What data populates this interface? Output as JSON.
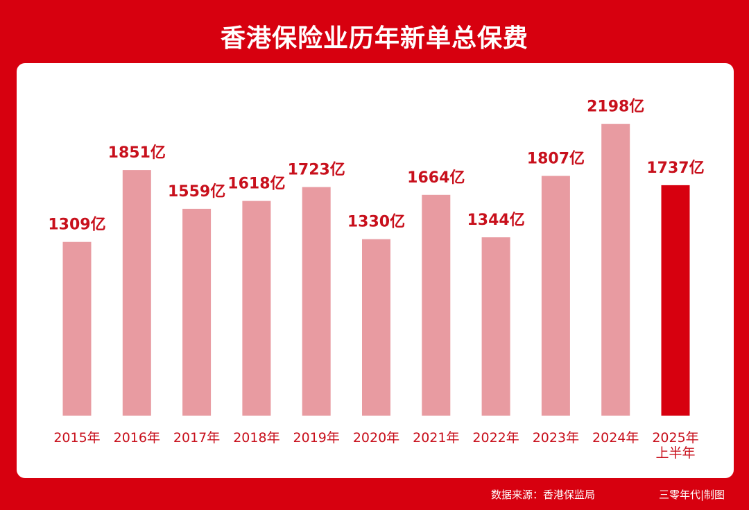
{
  "title": "香港保险业历年新单总保费",
  "footer": {
    "source": "数据来源：香港保监局",
    "credit": "三零年代|制图"
  },
  "colors": {
    "background": "#d7000f",
    "bar_normal": "#e89ba1",
    "bar_highlight": "#d7000f",
    "label": "#c8101c"
  },
  "chart_data": {
    "type": "bar",
    "categories": [
      "2015年",
      "2016年",
      "2017年",
      "2018年",
      "2019年",
      "2020年",
      "2021年",
      "2022年",
      "2023年",
      "2024年",
      "2025年上半年"
    ],
    "values": [
      1309,
      1851,
      1559,
      1618,
      1723,
      1330,
      1664,
      1344,
      1807,
      2198,
      1737
    ],
    "value_labels": [
      "1309亿",
      "1851亿",
      "1559亿",
      "1618亿",
      "1723亿",
      "1330亿",
      "1664亿",
      "1344亿",
      "1807亿",
      "2198亿",
      "1737亿"
    ],
    "category_labels": [
      [
        "2015年"
      ],
      [
        "2016年"
      ],
      [
        "2017年"
      ],
      [
        "2018年"
      ],
      [
        "2019年"
      ],
      [
        "2020年"
      ],
      [
        "2021年"
      ],
      [
        "2022年"
      ],
      [
        "2023年"
      ],
      [
        "2024年"
      ],
      [
        "2025年",
        "上半年"
      ]
    ],
    "highlight_index": 10,
    "unit": "亿",
    "ylim": [
      0,
      2200
    ],
    "grid": false,
    "title": "香港保险业历年新单总保费",
    "xlabel": "",
    "ylabel": ""
  }
}
